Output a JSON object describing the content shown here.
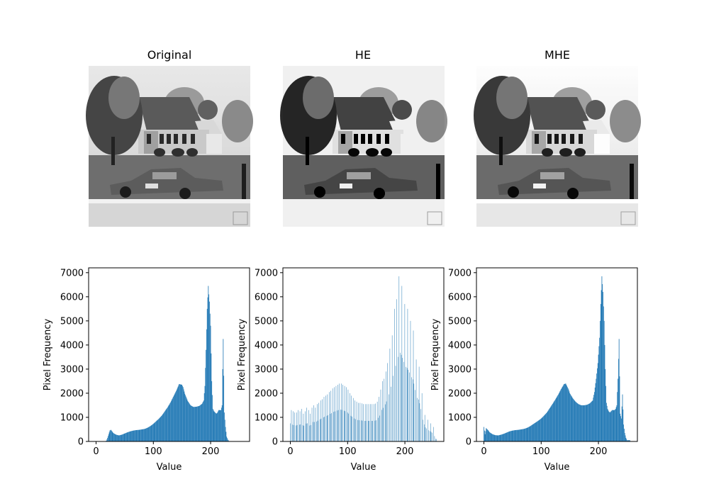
{
  "titles": [
    "Original",
    "HE",
    "MHE"
  ],
  "hist_xlabel": "Value",
  "hist_ylabel": "Pixel Frequency",
  "hist_color": "#1f77b4",
  "chart_data": [
    {
      "type": "bar",
      "title": "Original",
      "xlabel": "Value",
      "ylabel": "Pixel Frequency",
      "xlim": [
        -13,
        268
      ],
      "ylim": [
        0,
        7200
      ],
      "xticks": [
        0,
        100,
        200
      ],
      "yticks": [
        0,
        1000,
        2000,
        3000,
        4000,
        5000,
        6000,
        7000
      ],
      "x": [
        0,
        5,
        10,
        15,
        18,
        20,
        22,
        24,
        26,
        28,
        30,
        35,
        40,
        45,
        50,
        55,
        60,
        65,
        70,
        75,
        80,
        85,
        90,
        95,
        100,
        105,
        110,
        115,
        120,
        125,
        130,
        135,
        140,
        145,
        150,
        152,
        155,
        160,
        165,
        170,
        175,
        180,
        185,
        188,
        190,
        192,
        194,
        196,
        197,
        198,
        200,
        202,
        204,
        206,
        208,
        210,
        212,
        214,
        216,
        218,
        220,
        221,
        222,
        224,
        226,
        228,
        230,
        232,
        235,
        240,
        255
      ],
      "values": [
        0,
        0,
        0,
        0,
        30,
        150,
        300,
        450,
        480,
        420,
        350,
        280,
        250,
        280,
        330,
        380,
        420,
        450,
        470,
        480,
        500,
        520,
        570,
        640,
        730,
        840,
        950,
        1080,
        1250,
        1420,
        1620,
        1860,
        2100,
        2380,
        2350,
        2250,
        1980,
        1680,
        1500,
        1430,
        1440,
        1470,
        1560,
        1700,
        2300,
        3800,
        5500,
        6450,
        6100,
        5800,
        4800,
        2500,
        1350,
        1250,
        1200,
        1150,
        1200,
        1300,
        1300,
        1300,
        1500,
        3000,
        4250,
        1200,
        600,
        200,
        80,
        20,
        0,
        0,
        0
      ]
    },
    {
      "type": "bar",
      "title": "HE",
      "xlabel": "Value",
      "ylabel": "Pixel Frequency",
      "xlim": [
        -13,
        268
      ],
      "ylim": [
        0,
        7200
      ],
      "xticks": [
        0,
        100,
        200
      ],
      "yticks": [
        0,
        1000,
        2000,
        3000,
        4000,
        5000,
        6000,
        7000
      ],
      "x": [
        0,
        2,
        5,
        8,
        11,
        14,
        17,
        20,
        23,
        26,
        29,
        32,
        35,
        38,
        41,
        44,
        47,
        50,
        53,
        56,
        59,
        62,
        65,
        68,
        71,
        74,
        77,
        80,
        83,
        86,
        89,
        92,
        95,
        98,
        101,
        104,
        107,
        110,
        113,
        116,
        119,
        122,
        125,
        128,
        131,
        134,
        137,
        140,
        143,
        146,
        149,
        152,
        155,
        158,
        161,
        164,
        167,
        170,
        174,
        178,
        182,
        186,
        190,
        195,
        200,
        205,
        210,
        215,
        220,
        225,
        230,
        235,
        240,
        245,
        250,
        255
      ],
      "values": [
        750,
        1300,
        1250,
        1200,
        1200,
        1300,
        1250,
        1350,
        1150,
        1250,
        1400,
        1300,
        1150,
        1400,
        1500,
        1400,
        1550,
        1600,
        1700,
        1750,
        1850,
        1900,
        1950,
        2050,
        2100,
        2200,
        2250,
        2300,
        2350,
        2400,
        2400,
        2350,
        2300,
        2250,
        2150,
        2000,
        1900,
        1800,
        1700,
        1650,
        1600,
        1600,
        1580,
        1550,
        1550,
        1550,
        1550,
        1550,
        1550,
        1550,
        1570,
        1650,
        1850,
        2150,
        2500,
        2600,
        2900,
        3250,
        3850,
        4400,
        5500,
        5900,
        6850,
        6450,
        5700,
        5500,
        5000,
        4600,
        3400,
        3100,
        2000,
        1100,
        900,
        750,
        600,
        100
      ]
    },
    {
      "type": "bar",
      "title": "MHE",
      "xlabel": "Value",
      "ylabel": "Pixel Frequency",
      "xlim": [
        -13,
        268
      ],
      "ylim": [
        0,
        7200
      ],
      "xticks": [
        0,
        100,
        200
      ],
      "yticks": [
        0,
        1000,
        2000,
        3000,
        4000,
        5000,
        6000,
        7000
      ],
      "x": [
        0,
        2,
        4,
        6,
        8,
        10,
        15,
        20,
        25,
        30,
        35,
        40,
        45,
        50,
        55,
        60,
        65,
        70,
        75,
        80,
        85,
        90,
        95,
        100,
        105,
        110,
        115,
        120,
        125,
        130,
        135,
        140,
        143,
        145,
        148,
        150,
        155,
        160,
        165,
        170,
        175,
        180,
        185,
        190,
        193,
        196,
        199,
        202,
        204,
        206,
        208,
        210,
        212,
        214,
        216,
        218,
        220,
        222,
        224,
        226,
        228,
        230,
        232,
        234,
        236,
        238,
        240,
        242,
        244,
        246,
        248,
        250
      ],
      "values": [
        600,
        300,
        550,
        500,
        450,
        380,
        300,
        260,
        250,
        280,
        320,
        370,
        420,
        450,
        470,
        480,
        500,
        520,
        560,
        620,
        700,
        780,
        860,
        950,
        1070,
        1200,
        1380,
        1560,
        1750,
        1950,
        2180,
        2380,
        2400,
        2300,
        2150,
        2000,
        1800,
        1650,
        1550,
        1500,
        1500,
        1520,
        1580,
        1700,
        2050,
        2600,
        3250,
        4300,
        5700,
        6850,
        6200,
        5000,
        3000,
        1600,
        1350,
        1250,
        1200,
        1250,
        1300,
        1300,
        1300,
        1350,
        1500,
        2600,
        4250,
        1150,
        950,
        1950,
        700,
        350,
        150,
        50
      ]
    }
  ]
}
